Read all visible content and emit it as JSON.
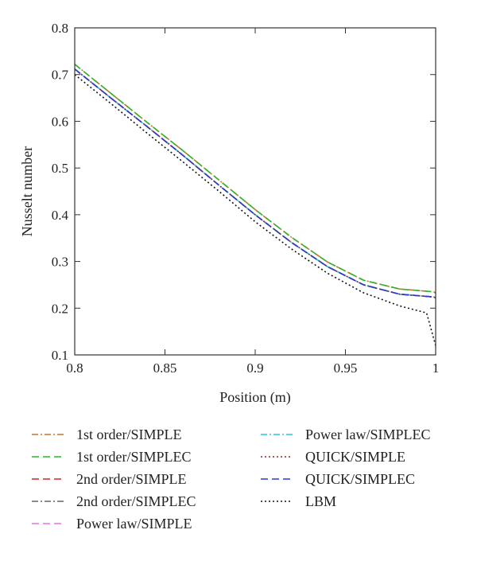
{
  "chart_data": {
    "type": "line",
    "xlabel": "Position (m)",
    "ylabel": "Nusselt number",
    "xlim": [
      0.8,
      1.0
    ],
    "ylim": [
      0.1,
      0.8
    ],
    "x_ticks": [
      "0.8",
      "0.85",
      "0.9",
      "0.95",
      "1"
    ],
    "y_ticks": [
      "0.1",
      "0.2",
      "0.3",
      "0.4",
      "0.5",
      "0.6",
      "0.7",
      "0.8"
    ],
    "grid": false,
    "legend_position": "below plot, two columns",
    "series": [
      {
        "name": "1st order/SIMPLE",
        "color": "#c8742a",
        "dash": "dash-dot",
        "x": [
          0.8,
          0.82,
          0.84,
          0.86,
          0.88,
          0.9,
          0.92,
          0.94,
          0.96,
          0.98,
          0.999,
          1.0
        ],
        "y": [
          0.722,
          0.66,
          0.598,
          0.537,
          0.474,
          0.411,
          0.352,
          0.299,
          0.26,
          0.241,
          0.235,
          0.232
        ]
      },
      {
        "name": "1st order/SIMPLEC",
        "color": "#2bb52b",
        "dash": "dash",
        "x": [
          0.8,
          0.82,
          0.84,
          0.86,
          0.88,
          0.9,
          0.92,
          0.94,
          0.96,
          0.98,
          0.999,
          1.0
        ],
        "y": [
          0.722,
          0.66,
          0.598,
          0.537,
          0.474,
          0.411,
          0.352,
          0.299,
          0.26,
          0.241,
          0.235,
          0.232
        ]
      },
      {
        "name": "2nd order/SIMPLE",
        "color": "#cc2a2a",
        "dash": "dash",
        "x": [
          0.8,
          0.82,
          0.84,
          0.86,
          0.88,
          0.9,
          0.92,
          0.94,
          0.96,
          0.98,
          0.999,
          1.0
        ],
        "y": [
          0.712,
          0.65,
          0.589,
          0.527,
          0.463,
          0.4,
          0.341,
          0.289,
          0.25,
          0.23,
          0.224,
          0.222
        ]
      },
      {
        "name": "2nd order/SIMPLEC",
        "color": "#666666",
        "dash": "dash-dot",
        "x": [
          0.8,
          0.82,
          0.84,
          0.86,
          0.88,
          0.9,
          0.92,
          0.94,
          0.96,
          0.98,
          0.999,
          1.0
        ],
        "y": [
          0.712,
          0.65,
          0.589,
          0.527,
          0.463,
          0.4,
          0.341,
          0.289,
          0.25,
          0.23,
          0.224,
          0.222
        ]
      },
      {
        "name": "Power law/SIMPLE",
        "color": "#e870e0",
        "dash": "dash",
        "x": [
          0.8,
          0.82,
          0.84,
          0.86,
          0.88,
          0.9,
          0.92,
          0.94,
          0.96,
          0.98,
          0.999,
          1.0
        ],
        "y": [
          0.712,
          0.65,
          0.589,
          0.527,
          0.463,
          0.4,
          0.341,
          0.289,
          0.25,
          0.23,
          0.224,
          0.222
        ]
      },
      {
        "name": "Power law/SIMPLEC",
        "color": "#28c8d8",
        "dash": "dash-dot",
        "x": [
          0.8,
          0.82,
          0.84,
          0.86,
          0.88,
          0.9,
          0.92,
          0.94,
          0.96,
          0.98,
          0.999,
          1.0
        ],
        "y": [
          0.712,
          0.65,
          0.589,
          0.527,
          0.463,
          0.4,
          0.341,
          0.289,
          0.25,
          0.23,
          0.224,
          0.222
        ]
      },
      {
        "name": "QUICK/SIMPLE",
        "color": "#8b2a2a",
        "dash": "dot",
        "x": [
          0.8,
          0.82,
          0.84,
          0.86,
          0.88,
          0.9,
          0.92,
          0.94,
          0.96,
          0.98,
          0.999,
          1.0
        ],
        "y": [
          0.712,
          0.65,
          0.589,
          0.527,
          0.463,
          0.4,
          0.341,
          0.289,
          0.25,
          0.23,
          0.224,
          0.222
        ]
      },
      {
        "name": "QUICK/SIMPLEC",
        "color": "#2a3ad0",
        "dash": "dash",
        "x": [
          0.8,
          0.82,
          0.84,
          0.86,
          0.88,
          0.9,
          0.92,
          0.94,
          0.96,
          0.98,
          0.999,
          1.0
        ],
        "y": [
          0.712,
          0.65,
          0.589,
          0.527,
          0.463,
          0.4,
          0.341,
          0.289,
          0.25,
          0.23,
          0.224,
          0.222
        ]
      },
      {
        "name": "LBM",
        "color": "#111111",
        "dash": "dot",
        "x": [
          0.8,
          0.82,
          0.84,
          0.86,
          0.88,
          0.9,
          0.92,
          0.94,
          0.96,
          0.98,
          0.995,
          1.0
        ],
        "y": [
          0.7,
          0.638,
          0.575,
          0.513,
          0.45,
          0.385,
          0.327,
          0.275,
          0.233,
          0.205,
          0.19,
          0.12
        ]
      }
    ]
  }
}
